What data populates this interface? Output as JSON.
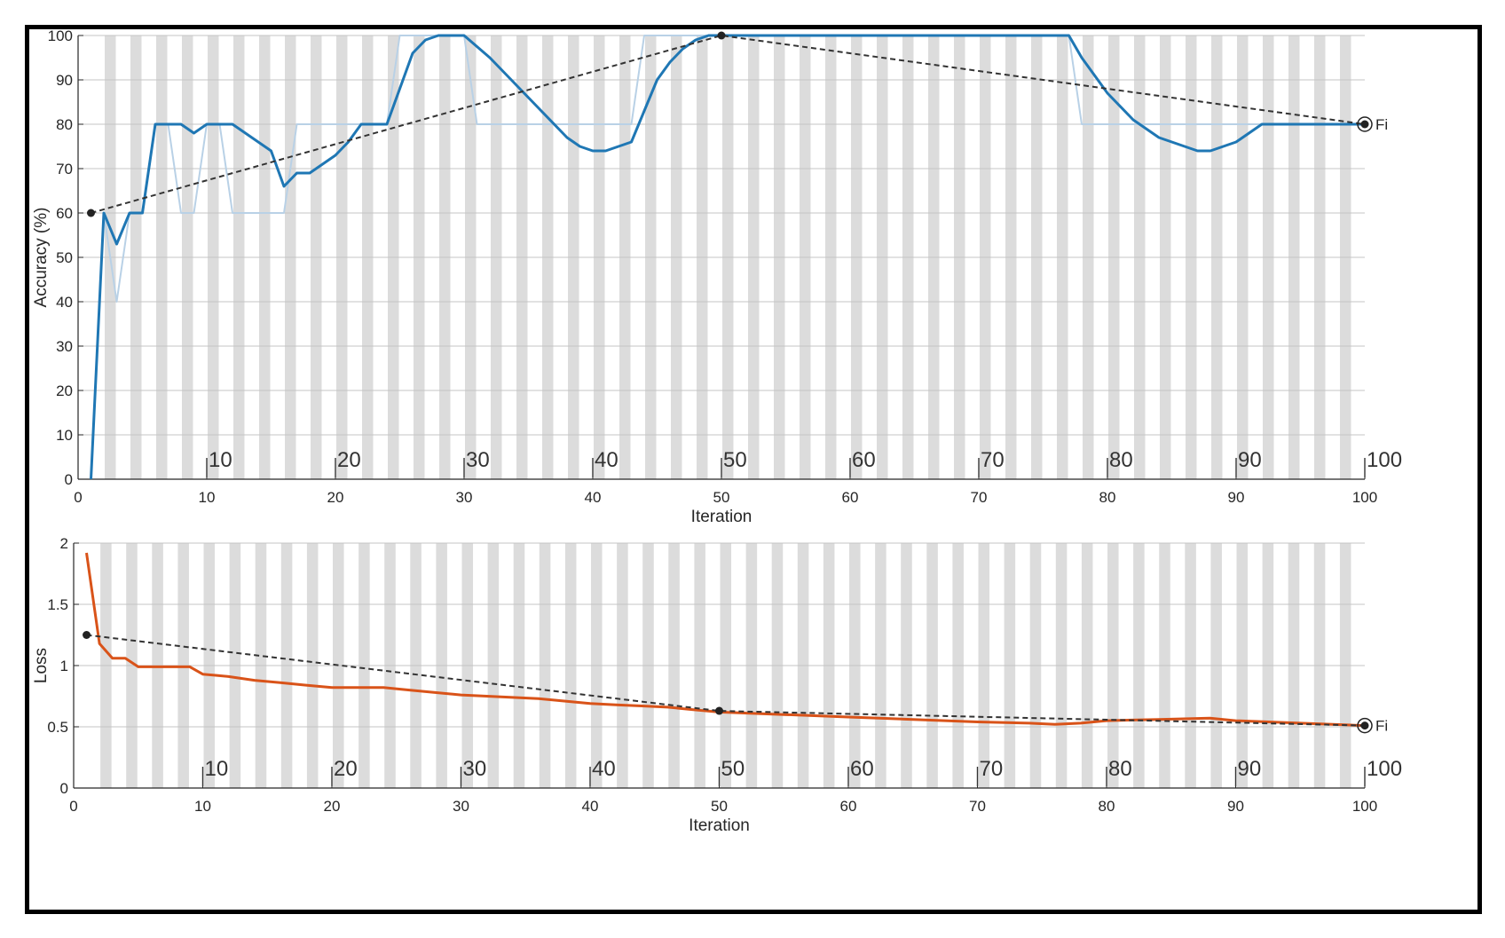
{
  "chart_data": [
    {
      "type": "line",
      "xlabel": "Iteration",
      "ylabel": "Accuracy (%)",
      "xlim": [
        0,
        100
      ],
      "ylim": [
        0,
        100
      ],
      "xticks": [
        0,
        10,
        20,
        30,
        40,
        50,
        60,
        70,
        80,
        90,
        100
      ],
      "yticks": [
        0,
        10,
        20,
        30,
        40,
        50,
        60,
        70,
        80,
        90,
        100
      ],
      "epoch_labels": [
        "10",
        "20",
        "30",
        "40",
        "50",
        "60",
        "70",
        "80",
        "90",
        "100"
      ],
      "grid": true,
      "end_label": "Fi",
      "colors": {
        "smoothed": "#1f77b4",
        "raw": "#b9d1e6",
        "validation": "#333333"
      },
      "series": [
        {
          "role": "raw",
          "x": [
            1,
            2,
            3,
            4,
            5,
            6,
            7,
            8,
            9,
            10,
            11,
            12,
            13,
            14,
            15,
            16,
            17,
            18,
            19,
            20,
            21,
            22,
            23,
            24,
            25,
            26,
            27,
            28,
            29,
            30,
            31,
            32,
            33,
            34,
            35,
            36,
            37,
            38,
            39,
            40,
            41,
            42,
            43,
            44,
            45,
            46,
            47,
            48,
            49,
            50,
            55,
            60,
            65,
            70,
            75,
            77,
            78,
            80,
            85,
            90,
            95,
            100
          ],
          "y": [
            0,
            60,
            40,
            60,
            60,
            80,
            80,
            60,
            60,
            80,
            80,
            60,
            60,
            60,
            60,
            60,
            80,
            80,
            80,
            80,
            80,
            80,
            80,
            80,
            100,
            100,
            100,
            100,
            100,
            100,
            80,
            80,
            80,
            80,
            80,
            80,
            80,
            80,
            80,
            80,
            80,
            80,
            80,
            100,
            100,
            100,
            100,
            100,
            100,
            100,
            100,
            100,
            100,
            100,
            100,
            100,
            80,
            80,
            80,
            80,
            80,
            80
          ]
        },
        {
          "role": "smoothed",
          "x": [
            1,
            2,
            3,
            4,
            5,
            6,
            7,
            8,
            9,
            10,
            11,
            12,
            13,
            14,
            15,
            16,
            17,
            18,
            19,
            20,
            21,
            22,
            23,
            24,
            25,
            26,
            27,
            28,
            29,
            30,
            32,
            34,
            36,
            38,
            39,
            40,
            41,
            42,
            43,
            44,
            45,
            46,
            47,
            48,
            49,
            50,
            55,
            60,
            65,
            70,
            75,
            77,
            78,
            80,
            82,
            84,
            86,
            87,
            88,
            90,
            92,
            95,
            100
          ],
          "y": [
            0,
            60,
            53,
            60,
            60,
            80,
            80,
            80,
            78,
            80,
            80,
            80,
            78,
            76,
            74,
            66,
            69,
            69,
            71,
            73,
            76,
            80,
            80,
            80,
            88,
            96,
            99,
            100,
            100,
            100,
            95,
            89,
            83,
            77,
            75,
            74,
            74,
            75,
            76,
            83,
            90,
            94,
            97,
            99,
            100,
            100,
            100,
            100,
            100,
            100,
            100,
            100,
            95,
            87,
            81,
            77,
            75,
            74,
            74,
            76,
            80,
            80,
            80
          ]
        },
        {
          "role": "validation",
          "x": [
            1,
            50,
            100
          ],
          "y": [
            60,
            100,
            80
          ]
        }
      ]
    },
    {
      "type": "line",
      "xlabel": "Iteration",
      "ylabel": "Loss",
      "xlim": [
        0,
        100
      ],
      "ylim": [
        0,
        2
      ],
      "xticks": [
        0,
        10,
        20,
        30,
        40,
        50,
        60,
        70,
        80,
        90,
        100
      ],
      "yticks": [
        "0",
        "0.5",
        "1",
        "1.5",
        "2"
      ],
      "epoch_labels": [
        "10",
        "20",
        "30",
        "40",
        "50",
        "60",
        "70",
        "80",
        "90",
        "100"
      ],
      "grid": true,
      "end_label": "Fi",
      "colors": {
        "smoothed": "#d95319",
        "raw": "#f2c2ac",
        "validation": "#333333"
      },
      "series": [
        {
          "role": "smoothed",
          "x": [
            1,
            2,
            3,
            4,
            5,
            6,
            7,
            8,
            9,
            10,
            11,
            12,
            14,
            16,
            18,
            20,
            22,
            24,
            26,
            28,
            30,
            32,
            34,
            36,
            38,
            40,
            42,
            44,
            46,
            48,
            50,
            55,
            60,
            65,
            70,
            74,
            76,
            78,
            80,
            84,
            88,
            90,
            95,
            100
          ],
          "y": [
            1.92,
            1.18,
            1.06,
            1.06,
            0.99,
            0.99,
            0.99,
            0.99,
            0.99,
            0.93,
            0.92,
            0.91,
            0.88,
            0.86,
            0.84,
            0.82,
            0.82,
            0.82,
            0.8,
            0.78,
            0.76,
            0.75,
            0.74,
            0.73,
            0.71,
            0.69,
            0.68,
            0.67,
            0.66,
            0.64,
            0.62,
            0.6,
            0.58,
            0.56,
            0.54,
            0.53,
            0.52,
            0.53,
            0.55,
            0.56,
            0.57,
            0.55,
            0.53,
            0.51
          ]
        },
        {
          "role": "validation",
          "x": [
            1,
            50,
            100
          ],
          "y": [
            1.25,
            0.63,
            0.51
          ]
        }
      ]
    }
  ]
}
